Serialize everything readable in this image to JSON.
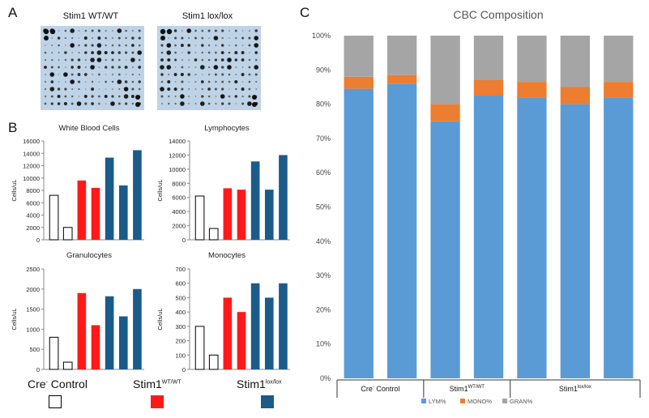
{
  "panels": {
    "a": "A",
    "b": "B",
    "c": "C"
  },
  "blots": [
    {
      "title": "Stim1 WT/WT"
    },
    {
      "title": "Stim1 lox/lox"
    }
  ],
  "colors": {
    "control_fill": "#ffffff",
    "wt": "#ff1a1a",
    "lox": "#1b5b8a",
    "lym": "#5b9bd5",
    "mono": "#ed7d31",
    "gran": "#a5a5a5",
    "blot_bg": "#bfd3e6",
    "blot_dot": "#111111"
  },
  "legend": {
    "control": {
      "main": "Cre",
      "sup": "-",
      "rest": " Control"
    },
    "wt": {
      "main": "Stim1",
      "sup": "WT/WT"
    },
    "lox": {
      "main": "Stim1",
      "sup": "lox/lox"
    }
  },
  "chart_data": [
    {
      "type": "bar",
      "title": "White Blood Cells",
      "ylabel": "Cells/uL",
      "ylim": [
        0,
        16000
      ],
      "yticks": [
        "0",
        "2000",
        "4000",
        "6000",
        "8000",
        "10000",
        "12000",
        "14000",
        "16000"
      ],
      "groups": [
        "control",
        "control",
        "wt",
        "wt",
        "lox",
        "lox",
        "lox"
      ],
      "values": [
        7200,
        2000,
        9600,
        8400,
        13300,
        8800,
        14500
      ]
    },
    {
      "type": "bar",
      "title": "Lymphocytes",
      "ylabel": "Cells/uL",
      "ylim": [
        0,
        14000
      ],
      "yticks": [
        "0",
        "2000",
        "4000",
        "6000",
        "8000",
        "10000",
        "12000",
        "14000"
      ],
      "groups": [
        "control",
        "control",
        "wt",
        "wt",
        "lox",
        "lox",
        "lox"
      ],
      "values": [
        6200,
        1600,
        7300,
        7100,
        11100,
        7100,
        12000
      ]
    },
    {
      "type": "bar",
      "title": "Granulocytes",
      "ylabel": "Cells/uL",
      "ylim": [
        0,
        2500
      ],
      "yticks": [
        "0",
        "500",
        "1000",
        "1500",
        "2000",
        "2500"
      ],
      "groups": [
        "control",
        "control",
        "wt",
        "wt",
        "lox",
        "lox",
        "lox"
      ],
      "values": [
        800,
        180,
        1900,
        1100,
        1820,
        1320,
        2000
      ]
    },
    {
      "type": "bar",
      "title": "Monocytes",
      "ylabel": "Cells/uL",
      "ylim": [
        0,
        700
      ],
      "yticks": [
        "0",
        "100",
        "200",
        "300",
        "400",
        "500",
        "600",
        "700"
      ],
      "groups": [
        "control",
        "control",
        "wt",
        "wt",
        "lox",
        "lox",
        "lox"
      ],
      "values": [
        300,
        100,
        500,
        400,
        600,
        500,
        600
      ]
    },
    {
      "type": "bar",
      "stacked": true,
      "title": "CBC Composition",
      "ylim": [
        0,
        100
      ],
      "yticks": [
        "0%",
        "10%",
        "20%",
        "30%",
        "40%",
        "50%",
        "60%",
        "70%",
        "80%",
        "90%",
        "100%"
      ],
      "group_labels": [
        {
          "main": "Cre",
          "sup": "-",
          "rest": " Control"
        },
        {
          "main": "Stim1",
          "sup": "WT/WT",
          "rest": ""
        },
        {
          "main": "Stim1",
          "sup": "lox/lox",
          "rest": ""
        }
      ],
      "series": [
        {
          "name": "LYM%",
          "values": [
            84.5,
            86,
            75,
            82.5,
            82,
            80,
            82
          ]
        },
        {
          "name": "MONO%",
          "values": [
            3.5,
            2.5,
            5,
            4.5,
            4.5,
            5,
            4.5
          ]
        },
        {
          "name": "GRAN%",
          "values": [
            12,
            11.5,
            20,
            13,
            13.5,
            15,
            13.5
          ]
        }
      ],
      "legend_position": "bottom"
    }
  ]
}
